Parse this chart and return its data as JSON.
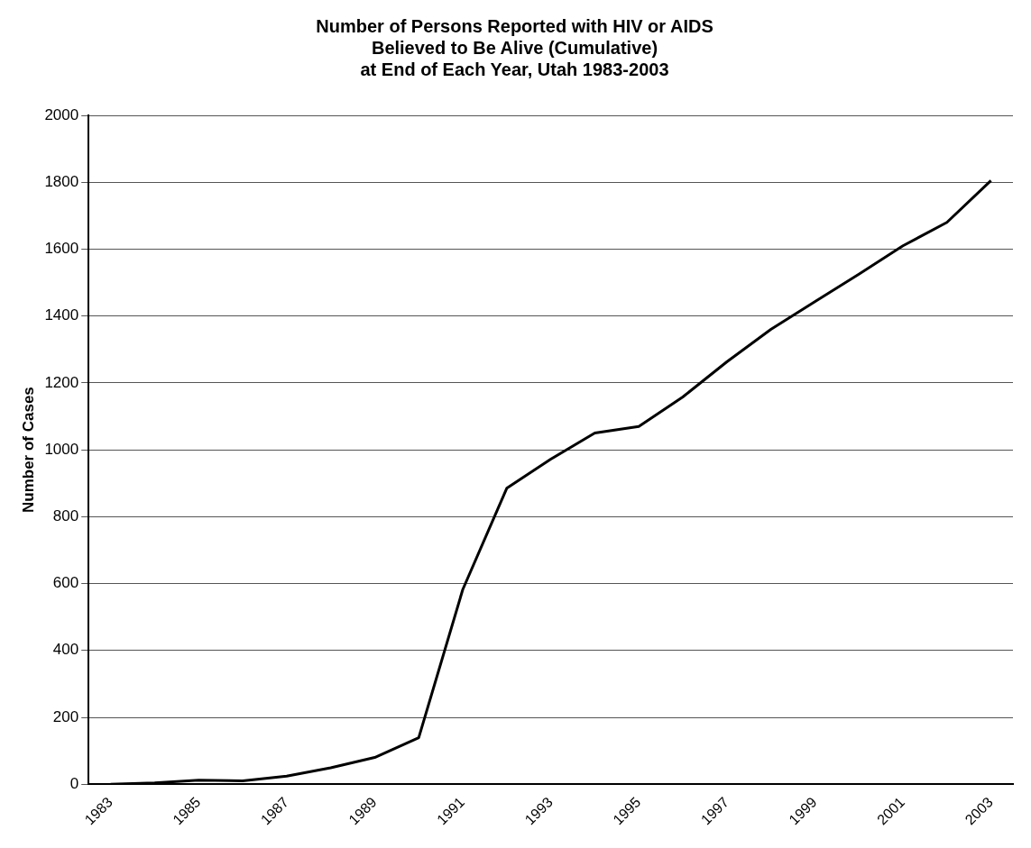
{
  "chart_data": {
    "type": "line",
    "title": "Number of Persons Reported with HIV or AIDS\nBelieved to Be Alive (Cumulative)\nat End of Each Year, Utah 1983-2003",
    "ylabel": "Number of Cases",
    "categories": [
      "1983",
      null,
      "1985",
      null,
      "1987",
      null,
      "1989",
      null,
      "1991",
      null,
      "1993",
      null,
      "1995",
      null,
      "1997",
      null,
      "1999",
      null,
      "2001",
      null,
      "2003"
    ],
    "series": [
      {
        "color": "#000000",
        "values": [
          0,
          4,
          12,
          10,
          24,
          49,
          80,
          139,
          582,
          885,
          972,
          1050,
          1070,
          1158,
          1263,
          1360,
          1443,
          1525,
          1610,
          1680,
          1805
        ]
      }
    ],
    "ylim": [
      0,
      2000
    ],
    "yticks": [
      0,
      200,
      400,
      600,
      800,
      1000,
      1200,
      1400,
      1600,
      1800,
      2000
    ],
    "grid": "y",
    "legend": false,
    "marker": "none",
    "line_style": "solid"
  }
}
